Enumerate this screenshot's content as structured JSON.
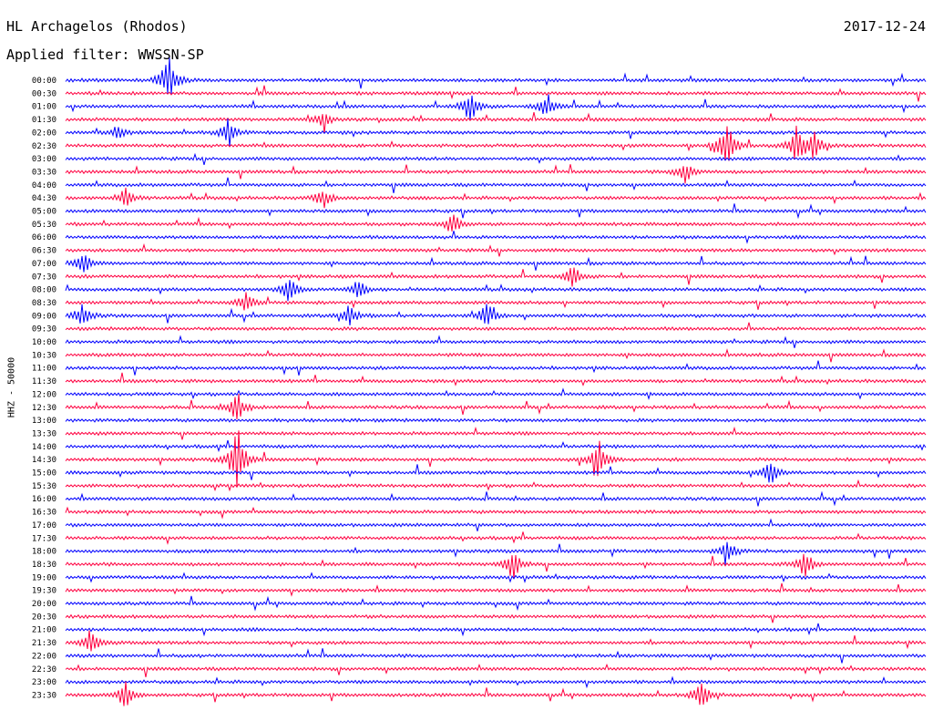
{
  "header": {
    "station": "HL Archagelos (Rhodos)",
    "date": "2017-12-24",
    "filter": "Applied filter: WWSSN-SP"
  },
  "chart_data": {
    "type": "line",
    "title": "HL Archagelos (Rhodos)",
    "subtitle": "Applied filter: WWSSN-SP",
    "date": "2017-12-24",
    "ylabel": "HHZ - 50000",
    "row_labels": [
      "00:00",
      "00:30",
      "01:00",
      "01:30",
      "02:00",
      "02:30",
      "03:00",
      "03:30",
      "04:00",
      "04:30",
      "05:00",
      "05:30",
      "06:00",
      "06:30",
      "07:00",
      "07:30",
      "08:00",
      "08:30",
      "09:00",
      "09:30",
      "10:00",
      "10:30",
      "11:00",
      "11:30",
      "12:00",
      "12:30",
      "13:00",
      "13:30",
      "14:00",
      "14:30",
      "15:00",
      "15:30",
      "16:00",
      "16:30",
      "17:00",
      "17:30",
      "18:00",
      "18:30",
      "19:00",
      "19:30",
      "20:00",
      "20:30",
      "21:00",
      "21:30",
      "22:00",
      "22:30",
      "23:00",
      "23:30"
    ],
    "colors": [
      "#0000ff",
      "#ff0040"
    ],
    "events": [
      {
        "row": "00:00",
        "t": 0.12,
        "amp": 2.6
      },
      {
        "row": "01:00",
        "t": 0.47,
        "amp": 1.6
      },
      {
        "row": "01:00",
        "t": 0.56,
        "amp": 1.2
      },
      {
        "row": "01:30",
        "t": 0.3,
        "amp": 0.9
      },
      {
        "row": "02:00",
        "t": 0.19,
        "amp": 1.5
      },
      {
        "row": "02:00",
        "t": 0.06,
        "amp": 0.7
      },
      {
        "row": "02:30",
        "t": 0.77,
        "amp": 3.0
      },
      {
        "row": "02:30",
        "t": 0.85,
        "amp": 1.8
      },
      {
        "row": "02:30",
        "t": 0.87,
        "amp": 1.6
      },
      {
        "row": "03:30",
        "t": 0.72,
        "amp": 1.2
      },
      {
        "row": "04:30",
        "t": 0.07,
        "amp": 1.0
      },
      {
        "row": "04:30",
        "t": 0.3,
        "amp": 1.0
      },
      {
        "row": "05:30",
        "t": 0.45,
        "amp": 1.1
      },
      {
        "row": "07:00",
        "t": 0.02,
        "amp": 1.3
      },
      {
        "row": "07:30",
        "t": 0.59,
        "amp": 1.1
      },
      {
        "row": "08:00",
        "t": 0.26,
        "amp": 1.4
      },
      {
        "row": "08:00",
        "t": 0.34,
        "amp": 1.1
      },
      {
        "row": "08:30",
        "t": 0.21,
        "amp": 1.1
      },
      {
        "row": "09:00",
        "t": 0.02,
        "amp": 1.2
      },
      {
        "row": "09:00",
        "t": 0.33,
        "amp": 1.1
      },
      {
        "row": "09:00",
        "t": 0.49,
        "amp": 1.2
      },
      {
        "row": "12:30",
        "t": 0.2,
        "amp": 1.6
      },
      {
        "row": "14:30",
        "t": 0.2,
        "amp": 3.5
      },
      {
        "row": "14:30",
        "t": 0.62,
        "amp": 2.0
      },
      {
        "row": "15:00",
        "t": 0.82,
        "amp": 1.2
      },
      {
        "row": "18:00",
        "t": 0.77,
        "amp": 1.2
      },
      {
        "row": "18:30",
        "t": 0.52,
        "amp": 1.5
      },
      {
        "row": "18:30",
        "t": 0.86,
        "amp": 1.4
      },
      {
        "row": "21:30",
        "t": 0.03,
        "amp": 1.5
      },
      {
        "row": "23:30",
        "t": 0.07,
        "amp": 1.3
      },
      {
        "row": "23:30",
        "t": 0.74,
        "amp": 1.4
      }
    ]
  }
}
